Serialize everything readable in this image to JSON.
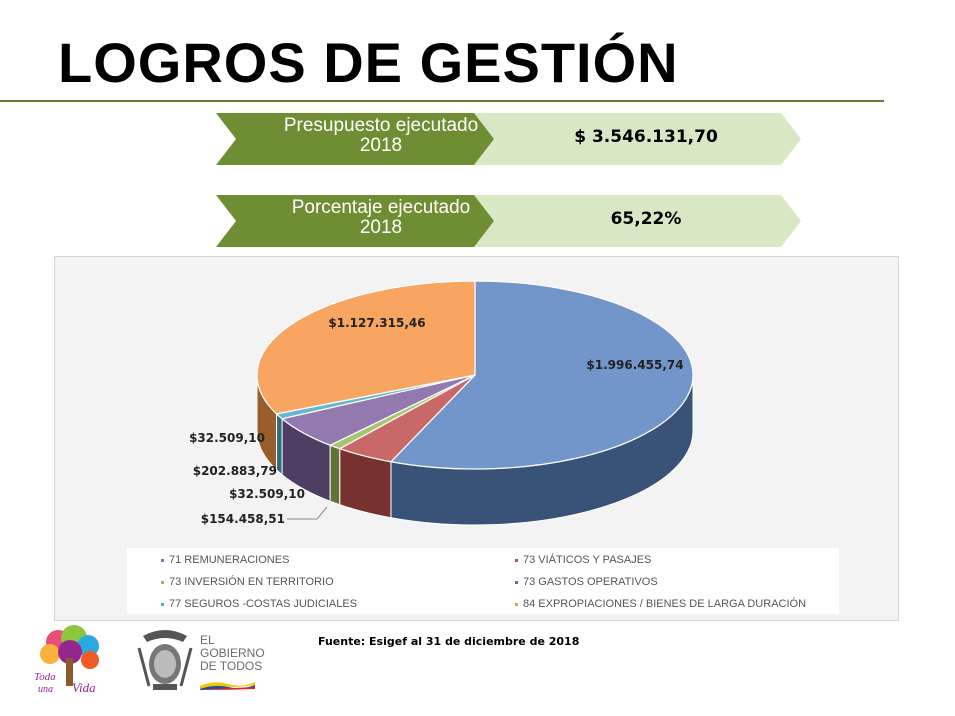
{
  "title": "LOGROS DE GESTIÓN",
  "kpis": [
    {
      "label_line1": "Presupuesto ejecutado",
      "label_line2": "2018",
      "value": "$ 3.546.131,70"
    },
    {
      "label_line1": "Porcentaje ejecutado",
      "label_line2": "2018",
      "value": "65,22%"
    }
  ],
  "colors": {
    "kpi_label_bg": "#6f8e34",
    "kpi_value_bg": "#d9e8c4",
    "rule": "#6b7a2e"
  },
  "chart_data": {
    "type": "pie",
    "style": "3d",
    "slices": [
      {
        "name": "71 REMUNERACIONES",
        "value": 1996455.74,
        "label": "$1.996.455,74",
        "color": "#5b84c2"
      },
      {
        "name": "73 VIÁTICOS Y PASAJES",
        "value": 154458.51,
        "label": "$154.458,51",
        "color": "#c0504d"
      },
      {
        "name": "73 INVERSIÓN EN TERRITORIO",
        "value": 32509.1,
        "label": "$32.509,10",
        "color": "#9bbb59"
      },
      {
        "name": "73 GASTOS OPERATIVOS",
        "value": 202883.79,
        "label": "$202.883,79",
        "color": "#8064a2"
      },
      {
        "name": "77 SEGUROS -COSTAS JUDICIALES",
        "value": 32509.1,
        "label": "$32.509,10",
        "color": "#4bacc6"
      },
      {
        "name": "84 EXPROPIACIONES / BIENES DE LARGA DURACIÓN",
        "value": 1127315.46,
        "label": "$1.127.315,46",
        "color": "#f79646"
      }
    ],
    "legend": [
      "71 REMUNERACIONES",
      "73 VIÁTICOS Y PASAJES",
      "73 INVERSIÓN EN TERRITORIO",
      "73 GASTOS OPERATIVOS",
      "77 SEGUROS -COSTAS JUDICIALES",
      "84 EXPROPIACIONES / BIENES DE LARGA DURACIÓN"
    ],
    "legend_position": "bottom"
  },
  "source": "Fuente: Esigef al 31 de diciembre de 2018",
  "logos": {
    "toda_una_vida": "Toda una Vida",
    "gov_line1": "EL",
    "gov_line2": "GOBIERNO",
    "gov_line3": "DE TODOS"
  }
}
